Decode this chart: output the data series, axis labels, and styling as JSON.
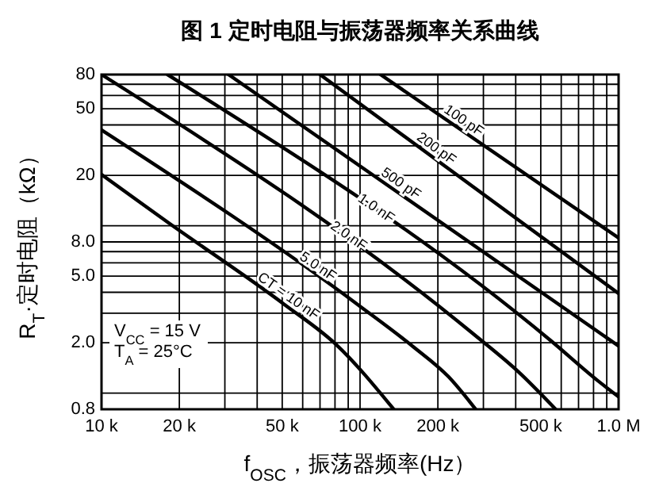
{
  "chart_data": {
    "type": "line",
    "title": "图 1  定时电阻与振荡器频率关系曲线",
    "xlabel": "f$_{OSC}$，振荡器频率(Hz）",
    "ylabel": "R$_{T}$·定时电阻（kΩ）",
    "log": "xy",
    "grid": true,
    "marker": "none",
    "line_style": "solid",
    "xlim": [
      10000,
      1000000
    ],
    "ylim": [
      0.8,
      80
    ],
    "xticks": [
      {
        "value": 10000,
        "label": "10 k"
      },
      {
        "value": 20000,
        "label": "20 k"
      },
      {
        "value": 30000,
        "label": null
      },
      {
        "value": 40000,
        "label": null
      },
      {
        "value": 50000,
        "label": "50 k"
      },
      {
        "value": 60000,
        "label": null
      },
      {
        "value": 70000,
        "label": null
      },
      {
        "value": 80000,
        "label": null
      },
      {
        "value": 90000,
        "label": null
      },
      {
        "value": 100000,
        "label": "100 k"
      },
      {
        "value": 200000,
        "label": "200 k"
      },
      {
        "value": 300000,
        "label": null
      },
      {
        "value": 400000,
        "label": null
      },
      {
        "value": 500000,
        "label": "500 k"
      },
      {
        "value": 600000,
        "label": null
      },
      {
        "value": 700000,
        "label": null
      },
      {
        "value": 800000,
        "label": null
      },
      {
        "value": 900000,
        "label": null
      },
      {
        "value": 1000000,
        "label": "1.0 M"
      }
    ],
    "yticks": [
      0.8,
      {
        "value": 1,
        "label": null
      },
      {
        "value": 2,
        "label": "2.0"
      },
      {
        "value": 3,
        "label": null
      },
      {
        "value": 4,
        "label": null
      },
      {
        "value": 5,
        "label": "5.0"
      },
      {
        "value": 6,
        "label": null
      },
      {
        "value": 7,
        "label": null
      },
      {
        "value": 8,
        "label": "8.0"
      },
      {
        "value": 10,
        "label": null
      },
      20,
      {
        "value": 30,
        "label": null
      },
      {
        "value": 40,
        "label": null
      },
      50,
      {
        "value": 60,
        "label": null
      },
      {
        "value": 70,
        "label": null
      },
      80
    ],
    "series": [
      {
        "name": "100 pF",
        "color": "#000000",
        "x": [
          120000,
          1000000
        ],
        "values": [
          80,
          8.45
        ]
      },
      {
        "name": "200 pF",
        "color": "#000000",
        "x": [
          70000,
          1000000
        ],
        "values": [
          80,
          3.94
        ]
      },
      {
        "name": "500 pF",
        "color": "#000000",
        "x": [
          31000,
          1000000
        ],
        "values": [
          80,
          1.91
        ]
      },
      {
        "name": "1.0 nF",
        "color": "#000000",
        "x": [
          18000,
          548000,
          834000,
          1000000
        ],
        "values": [
          80,
          2.05,
          1.18,
          0.95
        ]
      },
      {
        "name": "2.0 nF",
        "color": "#000000",
        "x": [
          10000,
          272000,
          414000,
          571000
        ],
        "values": [
          80,
          2.28,
          1.32,
          0.8
        ]
      },
      {
        "name": "5.0 nF",
        "color": "#000000",
        "x": [
          10000,
          100000,
          160000,
          220000,
          280000
        ],
        "values": [
          37.3,
          3.3,
          1.9,
          1.25,
          0.8
        ]
      },
      {
        "name": "CT = 10 nF",
        "color": "#000000",
        "x": [
          10000,
          18000,
          51000,
          80500,
          135000
        ],
        "values": [
          20.2,
          10.5,
          3.38,
          1.96,
          0.8
        ]
      }
    ],
    "annotations": [
      "V$_{CC}$ = 15 V",
      "T$_{A}$ = 25°C"
    ]
  }
}
